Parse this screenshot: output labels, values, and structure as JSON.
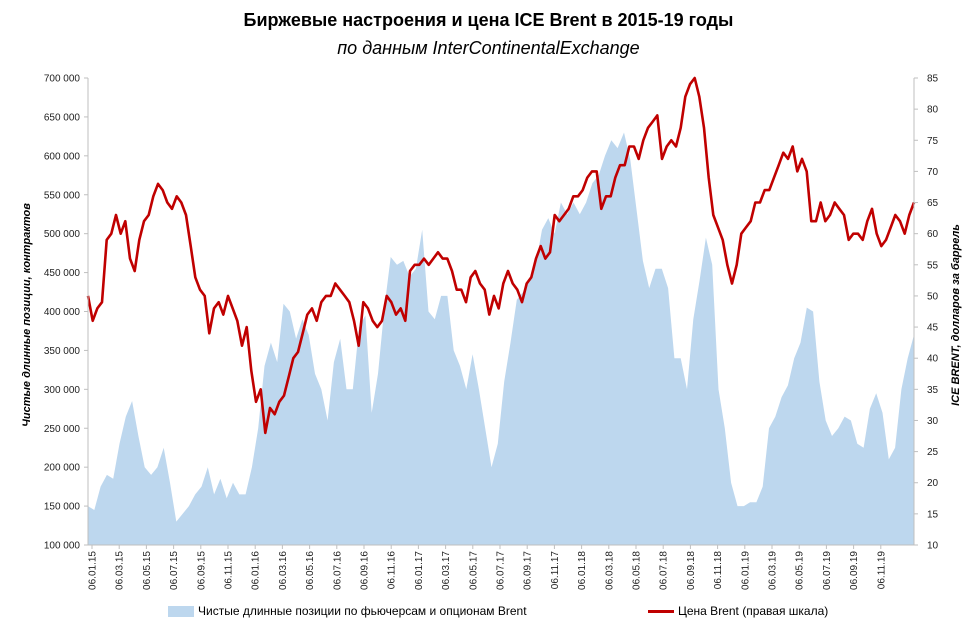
{
  "chart_data": {
    "type": "area+line",
    "title": "Биржевые настроения и цена ICE Brent в 2015-19 годы",
    "subtitle": "по данным InterContinentalExchange",
    "ylabel_left": "Чистые длинные позиции, контрактов",
    "ylabel_right": "ICE BRENT, долларов за баррель",
    "ylim_left": [
      100000,
      700000
    ],
    "ylim_right": [
      10,
      85
    ],
    "yticks_left": [
      "100 000",
      "150 000",
      "200 000",
      "250 000",
      "300 000",
      "350 000",
      "400 000",
      "450 000",
      "500 000",
      "550 000",
      "600 000",
      "650 000",
      "700 000"
    ],
    "yticks_right": [
      "10",
      "15",
      "20",
      "25",
      "30",
      "35",
      "40",
      "45",
      "50",
      "55",
      "60",
      "65",
      "70",
      "75",
      "80",
      "85"
    ],
    "xticks": [
      "06.01.15",
      "06.03.15",
      "06.05.15",
      "06.07.15",
      "06.09.15",
      "06.11.15",
      "06.01.16",
      "06.03.16",
      "06.05.16",
      "06.07.16",
      "06.09.16",
      "06.11.16",
      "06.01.17",
      "06.03.17",
      "06.05.17",
      "06.07.17",
      "06.09.17",
      "06.11.17",
      "06.01.18",
      "06.03.18",
      "06.05.18",
      "06.07.18",
      "06.09.18",
      "06.11.18",
      "06.01.19",
      "06.03.19",
      "06.05.19",
      "06.07.19",
      "06.09.19",
      "06.11.19"
    ],
    "legend_position": "bottom",
    "grid": false,
    "series": [
      {
        "name": "Чистые длинные позиции по фьючерсам и опционам Brent",
        "axis": "left",
        "type": "area",
        "color": "#bdd7ee",
        "values": [
          150000,
          145000,
          175000,
          190000,
          185000,
          230000,
          265000,
          285000,
          240000,
          200000,
          190000,
          200000,
          225000,
          180000,
          130000,
          140000,
          150000,
          165000,
          175000,
          200000,
          165000,
          185000,
          160000,
          180000,
          165000,
          165000,
          200000,
          250000,
          330000,
          360000,
          335000,
          410000,
          400000,
          365000,
          390000,
          370000,
          320000,
          300000,
          260000,
          335000,
          365000,
          300000,
          300000,
          380000,
          395000,
          270000,
          320000,
          405000,
          470000,
          460000,
          465000,
          445000,
          455000,
          505000,
          400000,
          390000,
          420000,
          420000,
          350000,
          330000,
          300000,
          345000,
          300000,
          250000,
          200000,
          230000,
          310000,
          360000,
          415000,
          425000,
          440000,
          460000,
          505000,
          520000,
          500000,
          540000,
          525000,
          540000,
          525000,
          540000,
          565000,
          575000,
          600000,
          620000,
          610000,
          630000,
          595000,
          530000,
          465000,
          430000,
          455000,
          455000,
          430000,
          340000,
          340000,
          300000,
          390000,
          440000,
          495000,
          460000,
          300000,
          250000,
          180000,
          150000,
          150000,
          155000,
          155000,
          175000,
          250000,
          265000,
          290000,
          305000,
          340000,
          360000,
          405000,
          400000,
          310000,
          260000,
          240000,
          250000,
          265000,
          260000,
          230000,
          225000,
          275000,
          295000,
          270000,
          210000,
          225000,
          300000,
          340000,
          370000
        ]
      },
      {
        "name": "Цена Brent (правая шкала)",
        "axis": "right",
        "type": "line",
        "color": "#c00000",
        "values": [
          50,
          46,
          48,
          49,
          59,
          60,
          63,
          60,
          62,
          56,
          54,
          59,
          62,
          63,
          66,
          68,
          67,
          65,
          64,
          66,
          65,
          63,
          58,
          53,
          51,
          50,
          44,
          48,
          49,
          47,
          50,
          48,
          46,
          42,
          45,
          38,
          33,
          35,
          28,
          32,
          31,
          33,
          34,
          37,
          40,
          41,
          44,
          47,
          48,
          46,
          49,
          50,
          50,
          52,
          51,
          50,
          49,
          46,
          42,
          49,
          48,
          46,
          45,
          46,
          50,
          49,
          47,
          48,
          46,
          54,
          55,
          55,
          56,
          55,
          56,
          57,
          56,
          56,
          54,
          51,
          51,
          49,
          53,
          54,
          52,
          51,
          47,
          50,
          48,
          52,
          54,
          52,
          51,
          49,
          52,
          53,
          56,
          58,
          56,
          57,
          63,
          62,
          63,
          64,
          66,
          66,
          67,
          69,
          70,
          70,
          64,
          66,
          66,
          69,
          71,
          71,
          74,
          74,
          72,
          75,
          77,
          78,
          79,
          72,
          74,
          75,
          74,
          77,
          82,
          84,
          85,
          82,
          77,
          69,
          63,
          61,
          59,
          55,
          52,
          55,
          60,
          61,
          62,
          65,
          65,
          67,
          67,
          69,
          71,
          73,
          72,
          74,
          70,
          72,
          70,
          62,
          62,
          65,
          62,
          63,
          65,
          64,
          63,
          59,
          60,
          60,
          59,
          62,
          64,
          60,
          58,
          59,
          61,
          63,
          62,
          60,
          63,
          65
        ]
      }
    ]
  },
  "legend": {
    "area_label": "Чистые длинные позиции по фьючерсам и опционам Brent",
    "line_label": "Цена Brent (правая шкала)"
  }
}
